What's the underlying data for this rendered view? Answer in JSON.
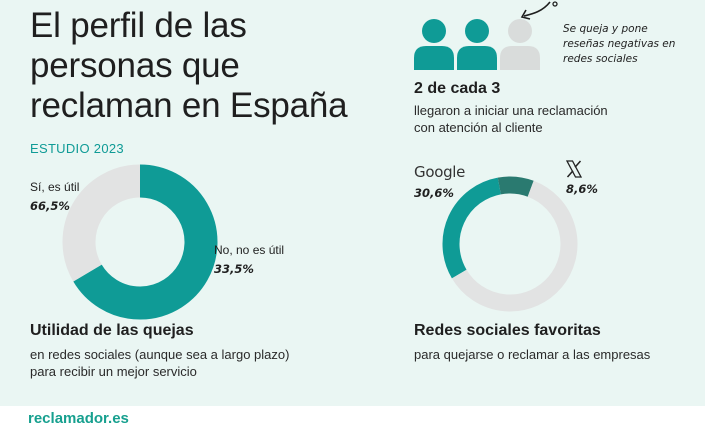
{
  "title": "El perfil de las personas que reclaman en España",
  "study_label": "ESTUDIO 2023",
  "people": {
    "note": [
      "Se queja y pone",
      "reseñas negativas en",
      "redes sociales"
    ],
    "stat": "2 de cada 3",
    "description": [
      "llegaron a iniciar una reclamación",
      "con atención al cliente"
    ],
    "filled_count": 2,
    "total_count": 3,
    "colors": {
      "filled": "#0f9b96",
      "empty": "#d9dcdb"
    }
  },
  "usefulness": {
    "heading": "Utilidad de las quejas",
    "description": [
      "en redes sociales (aunque sea a largo plazo)",
      "para recibir un mejor servicio"
    ]
  },
  "networks": {
    "heading": "Redes sociales favoritas",
    "description": "para quejarse o reclamar a las empresas",
    "google_logo": "Google",
    "x_logo": "X"
  },
  "brand": "reclamador.es",
  "chart_data": [
    {
      "type": "pie",
      "subtype": "donut",
      "title": "Utilidad de las quejas",
      "slices": [
        {
          "label": "Sí, es útil",
          "value": 66.5,
          "value_label": "66,5%",
          "color": "#0f9b96"
        },
        {
          "label": "No, no es útil",
          "value": 33.5,
          "value_label": "33,5%",
          "color": "#e2e3e3"
        }
      ]
    },
    {
      "type": "pie",
      "subtype": "donut",
      "title": "Redes sociales favoritas",
      "slices": [
        {
          "label": "Google",
          "value": 30.6,
          "value_label": "30,6%",
          "color": "#0f9b96"
        },
        {
          "label": "X",
          "value": 8.6,
          "value_label": "8,6%",
          "color": "#2a7a70"
        },
        {
          "label": "",
          "value": 60.8,
          "value_label": "",
          "color": "#e2e3e3"
        }
      ]
    }
  ]
}
